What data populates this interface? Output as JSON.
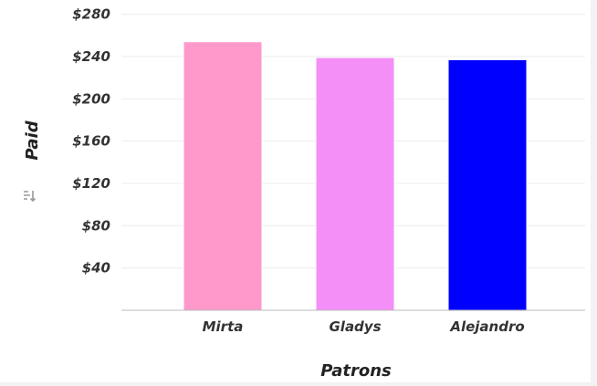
{
  "chart_data": {
    "type": "bar",
    "categories": [
      "Mirta",
      "Gladys",
      "Alejandro"
    ],
    "series": [
      {
        "values": [
          254,
          239,
          237
        ]
      }
    ],
    "colors": [
      "#ff99cc",
      "#f48ff7",
      "#0000ff"
    ],
    "xlabel": "Patrons",
    "ylabel": "Paid",
    "ylim": [
      0,
      290
    ],
    "yticks": [
      40,
      80,
      120,
      160,
      200,
      240,
      280
    ],
    "ytick_labels": [
      "$40",
      "$80",
      "$120",
      "$160",
      "$200",
      "$240",
      "$280"
    ],
    "grid": true
  },
  "icons": {
    "sort": "sort-icon"
  }
}
